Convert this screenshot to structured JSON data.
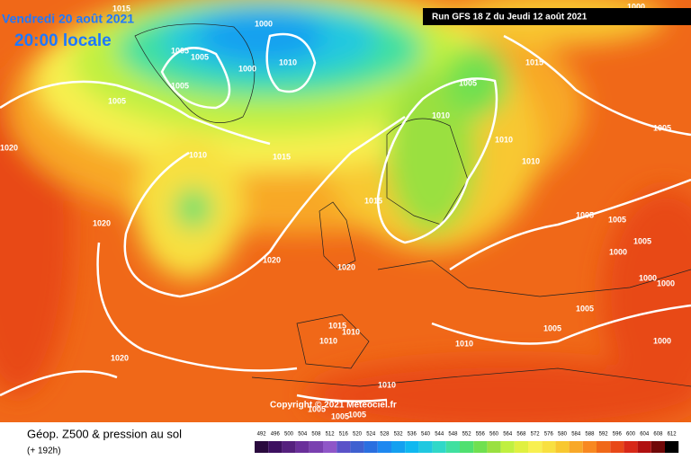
{
  "header": {
    "date": "Vendredi 20 août 2021",
    "time": "20:00 locale",
    "run": "Run GFS 18 Z du Jeudi 12 août 2021"
  },
  "copyright": "Copyright © 2021 Meteociel.fr",
  "footer": {
    "title": "Géop. Z500 & pression au sol",
    "lead": "(+ 192h)"
  },
  "isobar_labels": [
    "1015",
    "1000",
    "1005",
    "1005",
    "1010",
    "1000",
    "1005",
    "1005",
    "1020",
    "1010",
    "1015",
    "1020",
    "1020",
    "1020",
    "1015",
    "1005",
    "1010",
    "1015",
    "1010",
    "1010",
    "1005",
    "1005",
    "1005",
    "1005",
    "1000",
    "1000",
    "1000",
    "1005",
    "1005",
    "1000",
    "1015",
    "1010",
    "1010",
    "1010",
    "1020",
    "1010",
    "1005",
    "1005",
    "1005",
    "1000"
  ],
  "colorbar": {
    "ticks": [
      492,
      496,
      500,
      504,
      508,
      512,
      516,
      520,
      524,
      528,
      532,
      536,
      540,
      544,
      548,
      552,
      556,
      560,
      564,
      568,
      572,
      576,
      580,
      584,
      588,
      592,
      596,
      600,
      604,
      608,
      612
    ],
    "colors": [
      "#2a0a3e",
      "#3d1060",
      "#55207e",
      "#6a2f9a",
      "#7a40b0",
      "#8f56c8",
      "#5a52c8",
      "#3f60d0",
      "#2a6fe0",
      "#1e88f0",
      "#14a0f0",
      "#10b8f0",
      "#20c8e0",
      "#30d8c8",
      "#40e0a0",
      "#50e070",
      "#70e050",
      "#9ae040",
      "#c0f040",
      "#e0f040",
      "#f8f050",
      "#f8e040",
      "#f8c830",
      "#f8a828",
      "#f88820",
      "#f06818",
      "#e84818",
      "#d82818",
      "#b01010",
      "#700808",
      "#000000"
    ]
  }
}
